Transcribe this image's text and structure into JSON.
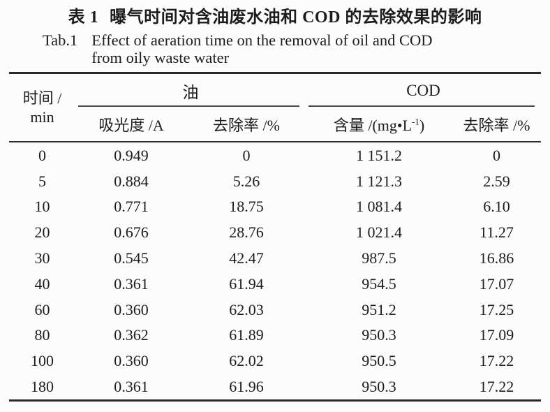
{
  "page": {
    "background": "#fcfcfc",
    "text_color": "#1c1c1c",
    "rule_color": "#2b2b2b"
  },
  "title": {
    "zh_label": "表 1",
    "zh_text": "曝气时间对含油废水油和 COD 的去除效果的影响",
    "en_label": "Tab.1",
    "en_line1": "Effect of aeration time on the removal of oil and COD",
    "en_line2": "from oily waste water"
  },
  "table": {
    "time_header_line1": "时间 /",
    "time_header_line2": "min",
    "group_oil": "油",
    "group_cod": "COD",
    "sub_absorbance": "吸光度 /A",
    "sub_oil_removal": "去除率 /%",
    "sub_cod_content_prefix": "含量 /(mg•L",
    "sub_cod_content_sup": "-1",
    "sub_cod_content_suffix": ")",
    "sub_cod_removal": "去除率 /%",
    "rows": [
      [
        "0",
        "0.949",
        "0",
        "1 151.2",
        "0"
      ],
      [
        "5",
        "0.884",
        "5.26",
        "1 121.3",
        "2.59"
      ],
      [
        "10",
        "0.771",
        "18.75",
        "1 081.4",
        "6.10"
      ],
      [
        "20",
        "0.676",
        "28.76",
        "1 021.4",
        "11.27"
      ],
      [
        "30",
        "0.545",
        "42.47",
        "987.5",
        "16.86"
      ],
      [
        "40",
        "0.361",
        "61.94",
        "954.5",
        "17.07"
      ],
      [
        "60",
        "0.360",
        "62.03",
        "951.2",
        "17.25"
      ],
      [
        "80",
        "0.362",
        "61.89",
        "950.3",
        "17.09"
      ],
      [
        "100",
        "0.360",
        "62.02",
        "950.5",
        "17.22"
      ],
      [
        "180",
        "0.361",
        "61.96",
        "950.3",
        "17.22"
      ]
    ]
  },
  "chart_data": {
    "type": "table",
    "title": "表 1 曝气时间对含油废水油和 COD 的去除效果的影响 (Tab.1 Effect of aeration time on the removal of oil and COD from oily waste water)",
    "columns": [
      "时间/min",
      "油 吸光度/A",
      "油 去除率/%",
      "COD 含量/(mg·L⁻¹)",
      "COD 去除率/%"
    ],
    "rows": [
      [
        0,
        0.949,
        0,
        1151.2,
        0
      ],
      [
        5,
        0.884,
        5.26,
        1121.3,
        2.59
      ],
      [
        10,
        0.771,
        18.75,
        1081.4,
        6.1
      ],
      [
        20,
        0.676,
        28.76,
        1021.4,
        11.27
      ],
      [
        30,
        0.545,
        42.47,
        987.5,
        16.86
      ],
      [
        40,
        0.361,
        61.94,
        954.5,
        17.07
      ],
      [
        60,
        0.36,
        62.03,
        951.2,
        17.25
      ],
      [
        80,
        0.362,
        61.89,
        950.3,
        17.09
      ],
      [
        100,
        0.36,
        62.02,
        950.5,
        17.22
      ],
      [
        180,
        0.361,
        61.96,
        950.3,
        17.22
      ]
    ]
  }
}
